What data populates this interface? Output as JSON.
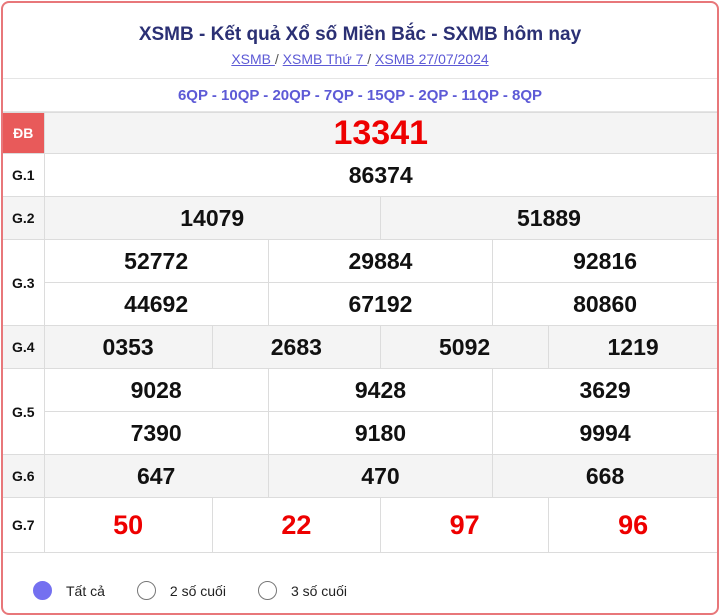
{
  "header": {
    "title": "XSMB - Kết quả Xổ số Miền Bắc - SXMB hôm nay",
    "breadcrumb": [
      "XSMB ",
      "XSMB Thứ 7 ",
      "XSMB 27/07/2024"
    ],
    "separator": "/"
  },
  "codes": "6QP - 10QP - 20QP - 7QP - 15QP - 2QP - 11QP - 8QP",
  "prizes": {
    "db": {
      "label": "ĐB",
      "values": [
        "13341"
      ]
    },
    "g1": {
      "label": "G.1",
      "values": [
        "86374"
      ]
    },
    "g2": {
      "label": "G.2",
      "values": [
        "14079",
        "51889"
      ]
    },
    "g3": {
      "label": "G.3",
      "values": [
        "52772",
        "29884",
        "92816",
        "44692",
        "67192",
        "80860"
      ]
    },
    "g4": {
      "label": "G.4",
      "values": [
        "0353",
        "2683",
        "5092",
        "1219"
      ]
    },
    "g5": {
      "label": "G.5",
      "values": [
        "9028",
        "9428",
        "3629",
        "7390",
        "9180",
        "9994"
      ]
    },
    "g6": {
      "label": "G.6",
      "values": [
        "647",
        "470",
        "668"
      ]
    },
    "g7": {
      "label": "G.7",
      "values": [
        "50",
        "22",
        "97",
        "96"
      ]
    }
  },
  "filter": {
    "options": [
      "Tất cả",
      "2 số cuối",
      "3 số cuối"
    ],
    "selected": "Tất cả"
  },
  "colors": {
    "accent": "#5d5ad6",
    "title": "#2b3074",
    "special": "#e00000",
    "db_label_bg": "#e85a5a",
    "border": "#e8777a"
  }
}
